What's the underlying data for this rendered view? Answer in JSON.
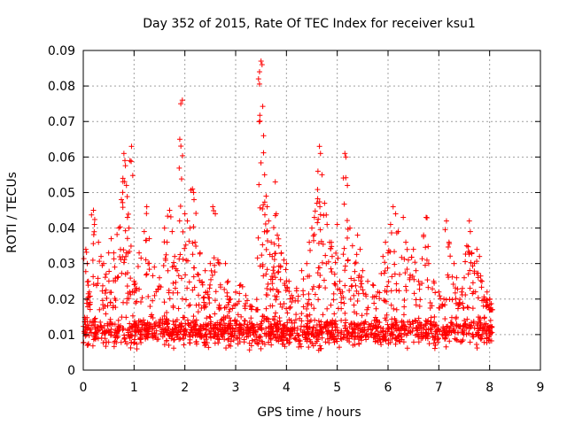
{
  "chart_data": {
    "type": "scatter",
    "title": "Day 352 of 2015, Rate Of TEC Index for receiver ksu1",
    "xlabel": "GPS time / hours",
    "ylabel": "ROTI / TECUs",
    "xlim": [
      0,
      9
    ],
    "ylim": [
      0,
      0.09
    ],
    "xticks": [
      "0",
      "1",
      "2",
      "3",
      "4",
      "5",
      "6",
      "7",
      "8",
      "9"
    ],
    "yticks": [
      "0",
      "0.01",
      "0.02",
      "0.03",
      "0.04",
      "0.05",
      "0.06",
      "0.07",
      "0.08",
      "0.09"
    ],
    "grid": true,
    "marker": "+",
    "color": "#ff0000",
    "series": [
      {
        "name": "ROTI",
        "baseline_range": [
          0.005,
          0.017
        ],
        "x_range": [
          0.0,
          8.05
        ],
        "points": [
          [
            0.05,
            0.034
          ],
          [
            0.08,
            0.03
          ],
          [
            0.1,
            0.025
          ],
          [
            0.12,
            0.022
          ],
          [
            0.2,
            0.045
          ],
          [
            0.22,
            0.041
          ],
          [
            0.3,
            0.036
          ],
          [
            0.35,
            0.032
          ],
          [
            0.4,
            0.03
          ],
          [
            0.45,
            0.027
          ],
          [
            0.5,
            0.033
          ],
          [
            0.55,
            0.037
          ],
          [
            0.6,
            0.033
          ],
          [
            0.62,
            0.029
          ],
          [
            0.7,
            0.04
          ],
          [
            0.75,
            0.048
          ],
          [
            0.78,
            0.054
          ],
          [
            0.8,
            0.061
          ],
          [
            0.82,
            0.059
          ],
          [
            0.85,
            0.052
          ],
          [
            0.87,
            0.043
          ],
          [
            0.9,
            0.04
          ],
          [
            0.92,
            0.059
          ],
          [
            0.95,
            0.063
          ],
          [
            1.0,
            0.025
          ],
          [
            1.05,
            0.023
          ],
          [
            1.1,
            0.033
          ],
          [
            1.2,
            0.039
          ],
          [
            1.25,
            0.046
          ],
          [
            1.3,
            0.037
          ],
          [
            1.4,
            0.029
          ],
          [
            1.5,
            0.026
          ],
          [
            1.6,
            0.04
          ],
          [
            1.65,
            0.036
          ],
          [
            1.7,
            0.045
          ],
          [
            1.75,
            0.039
          ],
          [
            1.8,
            0.032
          ],
          [
            1.85,
            0.028
          ],
          [
            1.9,
            0.065
          ],
          [
            1.92,
            0.075
          ],
          [
            1.95,
            0.076
          ],
          [
            2.0,
            0.044
          ],
          [
            2.05,
            0.042
          ],
          [
            2.1,
            0.04
          ],
          [
            2.15,
            0.051
          ],
          [
            2.18,
            0.048
          ],
          [
            2.2,
            0.036
          ],
          [
            2.25,
            0.027
          ],
          [
            2.3,
            0.033
          ],
          [
            2.35,
            0.024
          ],
          [
            2.4,
            0.028
          ],
          [
            2.45,
            0.022
          ],
          [
            2.5,
            0.03
          ],
          [
            2.55,
            0.046
          ],
          [
            2.6,
            0.044
          ],
          [
            2.65,
            0.031
          ],
          [
            2.7,
            0.024
          ],
          [
            2.8,
            0.03
          ],
          [
            2.85,
            0.025
          ],
          [
            2.9,
            0.02
          ],
          [
            3.0,
            0.022
          ],
          [
            3.1,
            0.024
          ],
          [
            3.2,
            0.021
          ],
          [
            3.3,
            0.018
          ],
          [
            3.4,
            0.017
          ],
          [
            3.45,
            0.082
          ],
          [
            3.47,
            0.084
          ],
          [
            3.5,
            0.087
          ],
          [
            3.52,
            0.086
          ],
          [
            3.55,
            0.066
          ],
          [
            3.57,
            0.055
          ],
          [
            3.6,
            0.049
          ],
          [
            3.62,
            0.046
          ],
          [
            3.65,
            0.042
          ],
          [
            3.7,
            0.036
          ],
          [
            3.72,
            0.032
          ],
          [
            3.75,
            0.029
          ],
          [
            3.78,
            0.053
          ],
          [
            3.8,
            0.044
          ],
          [
            3.82,
            0.038
          ],
          [
            3.85,
            0.035
          ],
          [
            3.9,
            0.033
          ],
          [
            3.95,
            0.031
          ],
          [
            4.0,
            0.03
          ],
          [
            4.05,
            0.025
          ],
          [
            4.1,
            0.021
          ],
          [
            4.2,
            0.023
          ],
          [
            4.3,
            0.028
          ],
          [
            4.4,
            0.03
          ],
          [
            4.45,
            0.036
          ],
          [
            4.5,
            0.04
          ],
          [
            4.55,
            0.043
          ],
          [
            4.6,
            0.047
          ],
          [
            4.62,
            0.056
          ],
          [
            4.65,
            0.063
          ],
          [
            4.67,
            0.061
          ],
          [
            4.7,
            0.055
          ],
          [
            4.75,
            0.047
          ],
          [
            4.8,
            0.041
          ],
          [
            4.85,
            0.036
          ],
          [
            4.9,
            0.032
          ],
          [
            4.95,
            0.027
          ],
          [
            5.0,
            0.041
          ],
          [
            5.05,
            0.025
          ],
          [
            5.1,
            0.022
          ],
          [
            5.15,
            0.061
          ],
          [
            5.17,
            0.06
          ],
          [
            5.2,
            0.052
          ],
          [
            5.25,
            0.04
          ],
          [
            5.3,
            0.035
          ],
          [
            5.35,
            0.03
          ],
          [
            5.4,
            0.038
          ],
          [
            5.45,
            0.034
          ],
          [
            5.5,
            0.028
          ],
          [
            5.6,
            0.025
          ],
          [
            5.7,
            0.024
          ],
          [
            5.8,
            0.022
          ],
          [
            5.9,
            0.032
          ],
          [
            5.95,
            0.036
          ],
          [
            6.0,
            0.033
          ],
          [
            6.05,
            0.041
          ],
          [
            6.1,
            0.046
          ],
          [
            6.15,
            0.044
          ],
          [
            6.2,
            0.039
          ],
          [
            6.3,
            0.043
          ],
          [
            6.35,
            0.036
          ],
          [
            6.4,
            0.031
          ],
          [
            6.5,
            0.034
          ],
          [
            6.55,
            0.028
          ],
          [
            6.6,
            0.025
          ],
          [
            6.7,
            0.038
          ],
          [
            6.75,
            0.043
          ],
          [
            6.8,
            0.03
          ],
          [
            6.9,
            0.025
          ],
          [
            7.0,
            0.022
          ],
          [
            7.1,
            0.02
          ],
          [
            7.15,
            0.042
          ],
          [
            7.2,
            0.036
          ],
          [
            7.3,
            0.03
          ],
          [
            7.35,
            0.026
          ],
          [
            7.4,
            0.019
          ],
          [
            7.45,
            0.022
          ],
          [
            7.5,
            0.026
          ],
          [
            7.55,
            0.035
          ],
          [
            7.6,
            0.042
          ],
          [
            7.62,
            0.039
          ],
          [
            7.65,
            0.033
          ],
          [
            7.7,
            0.03
          ],
          [
            7.75,
            0.034
          ],
          [
            7.8,
            0.032
          ],
          [
            7.85,
            0.025
          ],
          [
            7.9,
            0.02
          ],
          [
            7.95,
            0.022
          ],
          [
            8.0,
            0.02
          ],
          [
            8.02,
            0.014
          ],
          [
            8.04,
            0.012
          ]
        ]
      }
    ]
  }
}
